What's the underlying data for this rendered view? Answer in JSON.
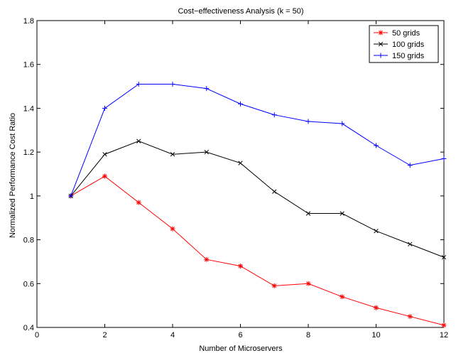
{
  "chart_data": {
    "type": "line",
    "title": "Cost−effectiveness Analysis (k = 50)",
    "xlabel": "Number of Microservers",
    "ylabel": "Normalized Performance Cost Ratio",
    "xlim": [
      0,
      12
    ],
    "ylim": [
      0.4,
      1.8
    ],
    "xticks": [
      0,
      2,
      4,
      6,
      8,
      10,
      12
    ],
    "yticks": [
      0.4,
      0.6,
      0.8,
      1,
      1.2,
      1.4,
      1.6,
      1.8
    ],
    "xtick_labels": [
      "0",
      "2",
      "4",
      "6",
      "8",
      "10",
      "12"
    ],
    "ytick_labels": [
      "0.4",
      "0.6",
      "0.8",
      "1",
      "1.2",
      "1.4",
      "1.6",
      "1.8"
    ],
    "grid": false,
    "legend_position": "top-right",
    "x": [
      1,
      2,
      3,
      4,
      5,
      6,
      7,
      8,
      9,
      10,
      11,
      12
    ],
    "series": [
      {
        "name": "50 grids",
        "color": "#ff0000",
        "marker": "asterisk",
        "values": [
          1.0,
          1.09,
          0.97,
          0.85,
          0.71,
          0.68,
          0.59,
          0.6,
          0.54,
          0.49,
          0.45,
          0.41
        ]
      },
      {
        "name": "100 grids",
        "color": "#000000",
        "marker": "x",
        "values": [
          1.0,
          1.19,
          1.25,
          1.19,
          1.2,
          1.15,
          1.02,
          0.92,
          0.92,
          0.84,
          0.78,
          0.72
        ]
      },
      {
        "name": "150 grids",
        "color": "#0000ff",
        "marker": "plus",
        "values": [
          1.0,
          1.4,
          1.51,
          1.51,
          1.49,
          1.42,
          1.37,
          1.34,
          1.33,
          1.23,
          1.14,
          1.17
        ]
      }
    ]
  }
}
